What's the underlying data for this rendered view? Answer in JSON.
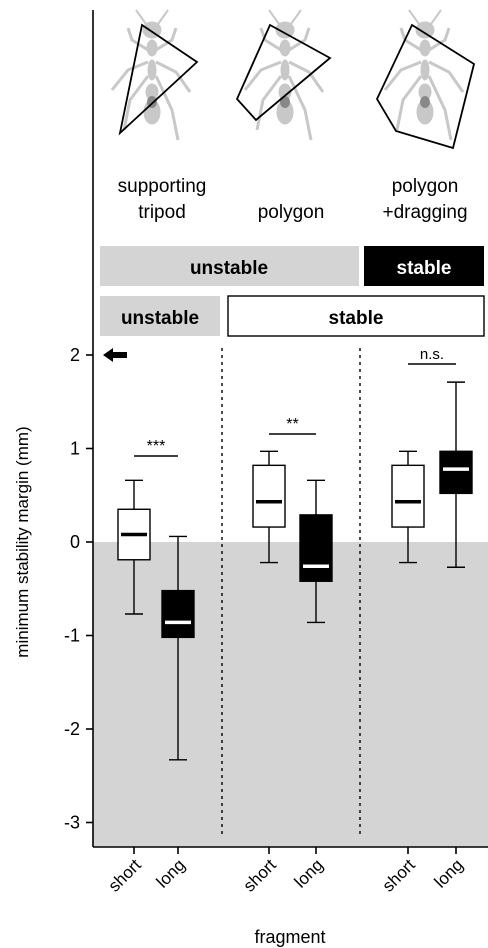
{
  "chart_data": {
    "type": "box",
    "ylabel": "minimum stability margin (mm)",
    "xlabel": "fragment",
    "ylim": [
      -3.3,
      2.2
    ],
    "yticks": [
      "2",
      "1",
      "0",
      "-1",
      "-2",
      "-3"
    ],
    "ytick_values": [
      2,
      1,
      0,
      -1,
      -2,
      -3
    ],
    "unstable_region_below": 0,
    "groups": [
      {
        "heading": [
          "supporting",
          "tripod"
        ],
        "significance": "***",
        "boxes": [
          {
            "label": "short",
            "fill": "#ffffff",
            "min": -0.77,
            "q1": -0.19,
            "median": 0.08,
            "q3": 0.35,
            "max": 0.66
          },
          {
            "label": "long",
            "fill": "#000000",
            "min": -2.33,
            "q1": -1.02,
            "median": -0.86,
            "q3": -0.52,
            "max": 0.06
          }
        ]
      },
      {
        "heading": [
          "",
          "polygon"
        ],
        "significance": "**",
        "boxes": [
          {
            "label": "short",
            "fill": "#ffffff",
            "min": -0.22,
            "q1": 0.16,
            "median": 0.43,
            "q3": 0.82,
            "max": 0.97
          },
          {
            "label": "long",
            "fill": "#000000",
            "min": -0.86,
            "q1": -0.42,
            "median": -0.26,
            "q3": 0.29,
            "max": 0.66
          }
        ]
      },
      {
        "heading": [
          "polygon",
          "+dragging"
        ],
        "significance": "n.s.",
        "boxes": [
          {
            "label": "short",
            "fill": "#ffffff",
            "min": -0.22,
            "q1": 0.16,
            "median": 0.43,
            "q3": 0.82,
            "max": 0.97
          },
          {
            "label": "long",
            "fill": "#000000",
            "min": -0.27,
            "q1": 0.52,
            "median": 0.78,
            "q3": 0.97,
            "max": 1.71
          }
        ]
      }
    ],
    "stability_bars": [
      [
        {
          "text": "unstable",
          "style": "gray"
        },
        {
          "text": "stable",
          "style": "black"
        }
      ],
      [
        {
          "text": "unstable",
          "style": "gray"
        },
        {
          "text": "stable",
          "style": "white"
        }
      ]
    ],
    "colors": {
      "unstable_shade": "#d4d4d4",
      "gray_bar": "#d4d4d4",
      "ant_silhouette": "#c8c8c8"
    }
  }
}
